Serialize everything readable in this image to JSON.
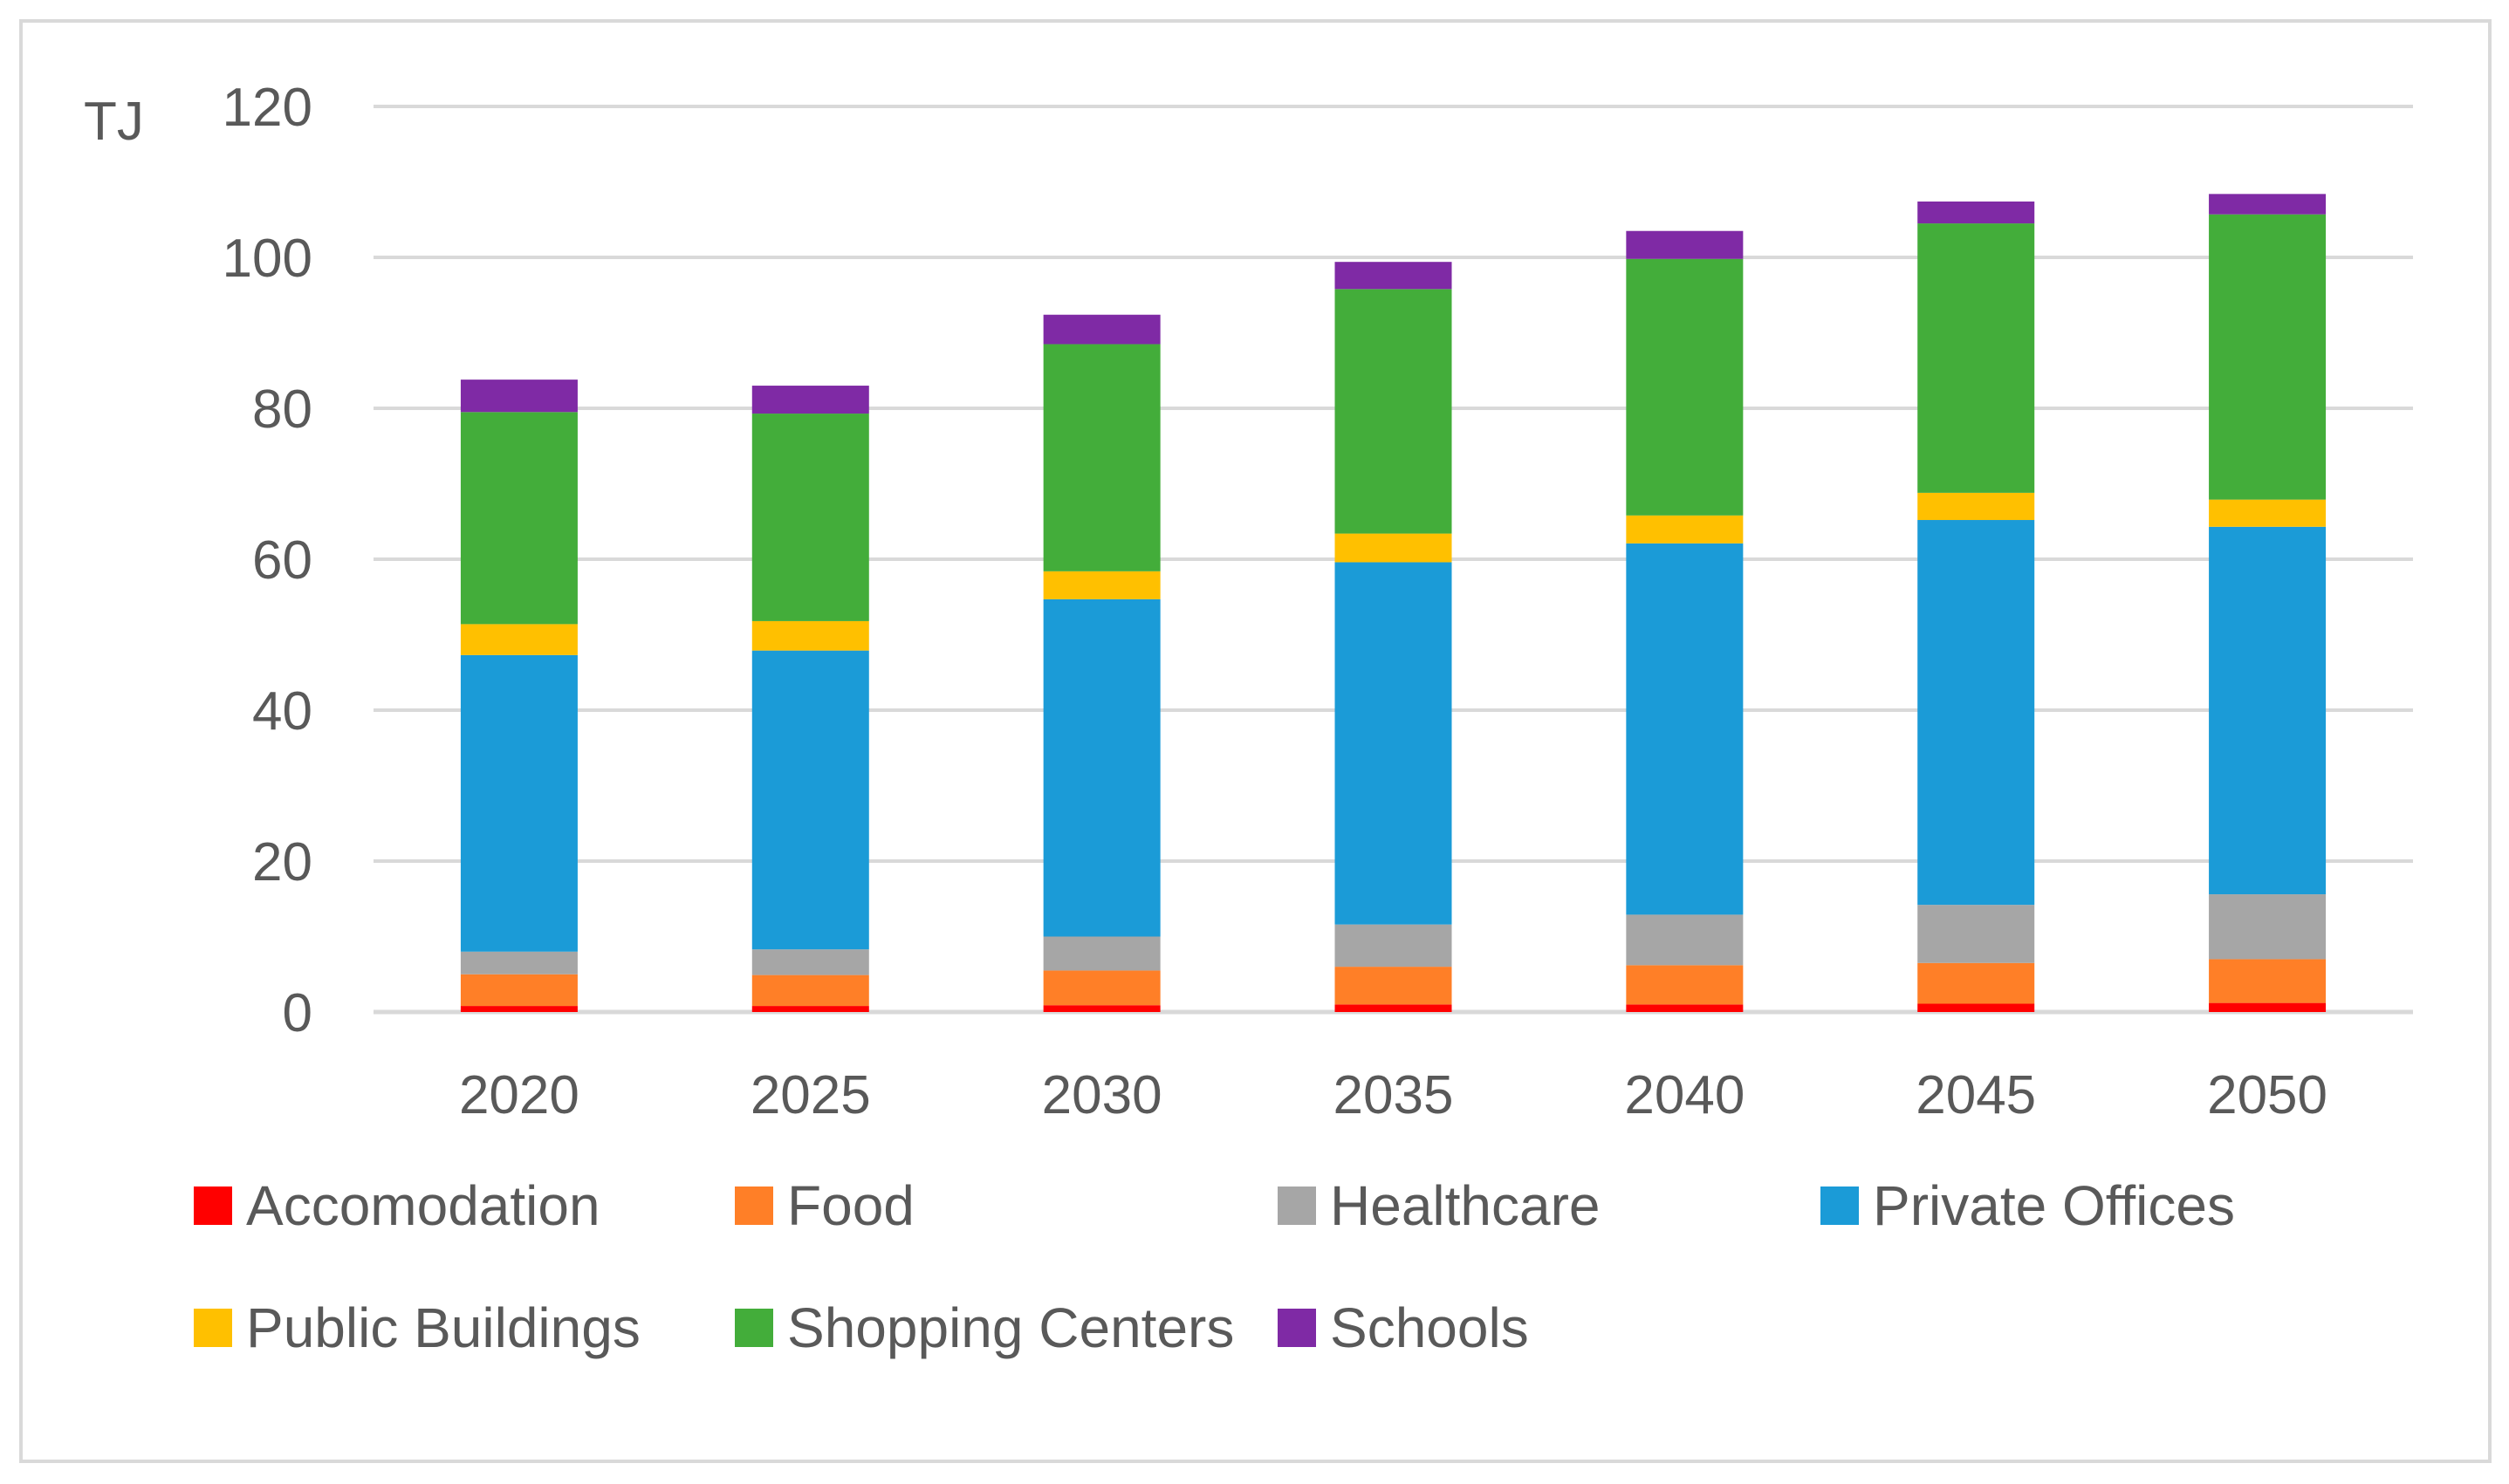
{
  "chart_data": {
    "type": "bar",
    "stacked": true,
    "title": "",
    "unit_label": "TJ",
    "xlabel": "",
    "ylabel": "",
    "categories": [
      "2020",
      "2025",
      "2030",
      "2035",
      "2040",
      "2045",
      "2050"
    ],
    "ylim": [
      0,
      120
    ],
    "yticks": [
      "0",
      "20",
      "40",
      "60",
      "80",
      "100",
      "120"
    ],
    "grid": true,
    "legend_position": "bottom",
    "series": [
      {
        "name": "Accomodation",
        "color": "#ff0000",
        "values": [
          0.8,
          0.8,
          0.9,
          1.0,
          1.0,
          1.1,
          1.2
        ]
      },
      {
        "name": "Food",
        "color": "#ff7f27",
        "values": [
          4.2,
          4.1,
          4.6,
          5.0,
          5.2,
          5.4,
          5.8
        ]
      },
      {
        "name": "Healthcare",
        "color": "#a6a6a6",
        "values": [
          3.0,
          3.4,
          4.5,
          5.6,
          6.7,
          7.7,
          8.6
        ]
      },
      {
        "name": "Private Offices",
        "color": "#1b9bd7",
        "values": [
          39.3,
          39.6,
          44.7,
          48.0,
          49.2,
          51.0,
          48.7
        ]
      },
      {
        "name": "Public Buildings",
        "color": "#ffc000",
        "values": [
          4.1,
          3.9,
          3.7,
          3.8,
          3.7,
          3.6,
          3.6
        ]
      },
      {
        "name": "Shopping Centers",
        "color": "#43ad3a",
        "values": [
          28.1,
          27.5,
          30.1,
          32.4,
          34.0,
          35.7,
          37.8
        ]
      },
      {
        "name": "Schools",
        "color": "#7f2aa5",
        "values": [
          4.3,
          3.7,
          3.9,
          3.6,
          3.7,
          2.9,
          2.7
        ]
      }
    ]
  }
}
